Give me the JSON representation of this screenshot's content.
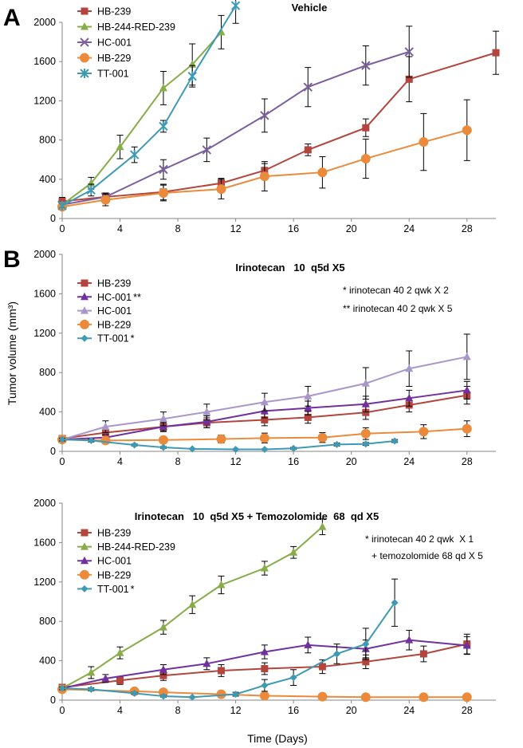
{
  "chart_data": [
    {
      "type": "line",
      "panel_label": "A",
      "title": "Vehicle",
      "xlim": [
        0,
        30
      ],
      "ylim": [
        0,
        2000
      ],
      "xticks": [
        0,
        4,
        8,
        12,
        16,
        20,
        24,
        28
      ],
      "yticks": [
        0,
        400,
        800,
        1200,
        1600,
        2000
      ],
      "legend": "top-left",
      "annotations": [],
      "series": [
        {
          "name": "HB-239",
          "color": "#b3453c",
          "marker": "square",
          "x": [
            0,
            3,
            7,
            11,
            14,
            17,
            21,
            24,
            30
          ],
          "y": [
            175,
            220,
            270,
            360,
            490,
            700,
            925,
            1420,
            1690
          ],
          "err": [
            40,
            40,
            80,
            50,
            70,
            60,
            90,
            230,
            220
          ]
        },
        {
          "name": "HB-244-RED-239",
          "color": "#86ad47",
          "marker": "triangle",
          "x": [
            0,
            2,
            4,
            7,
            9,
            11
          ],
          "y": [
            140,
            360,
            730,
            1330,
            1570,
            1900
          ],
          "err": [
            20,
            60,
            120,
            170,
            210,
            170
          ]
        },
        {
          "name": "HC-001",
          "color": "#7d5fa0",
          "marker": "x",
          "x": [
            0,
            3,
            7,
            10,
            14,
            17,
            21,
            24
          ],
          "y": [
            140,
            220,
            500,
            700,
            1050,
            1340,
            1560,
            1700
          ],
          "err": [
            20,
            30,
            100,
            120,
            170,
            200,
            200,
            260
          ]
        },
        {
          "name": "HB-229",
          "color": "#ea8a3a",
          "marker": "circle",
          "x": [
            0,
            3,
            7,
            11,
            14,
            18,
            21,
            25,
            28
          ],
          "y": [
            120,
            190,
            260,
            300,
            430,
            470,
            610,
            780,
            900
          ],
          "err": [
            20,
            60,
            80,
            100,
            150,
            160,
            200,
            290,
            310
          ]
        },
        {
          "name": "TT-001",
          "color": "#3e9ab4",
          "marker": "star",
          "x": [
            0,
            2,
            5,
            7,
            9,
            12
          ],
          "y": [
            130,
            290,
            650,
            940,
            1450,
            2170
          ],
          "err": [
            20,
            60,
            80,
            60,
            110,
            180
          ]
        }
      ]
    },
    {
      "type": "line",
      "panel_label": "B",
      "title": "Irinotecan   10  q5d X5",
      "ylabel": "Tumor volume (mm³)",
      "xlim": [
        0,
        30
      ],
      "ylim": [
        0,
        2000
      ],
      "xticks": [
        0,
        4,
        8,
        12,
        16,
        20,
        24,
        28
      ],
      "yticks": [
        0,
        400,
        800,
        1200,
        1600,
        2000
      ],
      "legend": "top-left",
      "annotations": [
        "* irinotecan 40 2 qwk X 2",
        "** irinotecan 40 2 qwk X 5"
      ],
      "series": [
        {
          "name": "HB-239",
          "color": "#b3453c",
          "marker": "square",
          "x": [
            0,
            3,
            7,
            10,
            14,
            17,
            21,
            24,
            28
          ],
          "y": [
            130,
            190,
            250,
            290,
            320,
            345,
            395,
            470,
            570
          ],
          "err": [
            20,
            30,
            40,
            50,
            60,
            60,
            70,
            70,
            90
          ]
        },
        {
          "name": "HC-001",
          "suffix": "**",
          "color": "#7030a0",
          "marker": "triangle",
          "x": [
            0,
            3,
            7,
            10,
            14,
            17,
            21,
            24,
            28
          ],
          "y": [
            120,
            140,
            250,
            300,
            410,
            440,
            480,
            540,
            620
          ],
          "err": [
            20,
            30,
            50,
            60,
            70,
            70,
            80,
            80,
            90
          ]
        },
        {
          "name": "HC-001",
          "color": "#a997cc",
          "marker": "triangle",
          "x": [
            0,
            3,
            7,
            10,
            14,
            17,
            21,
            24,
            28
          ],
          "y": [
            120,
            250,
            330,
            400,
            500,
            560,
            690,
            840,
            960
          ],
          "err": [
            20,
            60,
            70,
            80,
            90,
            100,
            160,
            180,
            230
          ]
        },
        {
          "name": "HB-229",
          "color": "#ea8a3a",
          "marker": "circle",
          "x": [
            0,
            3,
            7,
            11,
            14,
            18,
            21,
            25,
            28
          ],
          "y": [
            120,
            110,
            115,
            125,
            135,
            140,
            180,
            200,
            230
          ],
          "err": [
            20,
            20,
            30,
            40,
            50,
            50,
            60,
            70,
            80
          ]
        },
        {
          "name": "TT-001",
          "suffix": "*",
          "color": "#3e9ab4",
          "marker": "diamond",
          "x": [
            0,
            2,
            5,
            7,
            9,
            12,
            14,
            16,
            19,
            21,
            23
          ],
          "y": [
            120,
            110,
            65,
            40,
            25,
            20,
            20,
            30,
            70,
            75,
            105
          ],
          "err": [
            15,
            15,
            10,
            10,
            5,
            5,
            5,
            10,
            15,
            15,
            15
          ]
        }
      ]
    },
    {
      "type": "line",
      "title": "Irinotecan   10  q5d X5 + Temozolomide  68  qd X5",
      "xlabel": "Time (Days)",
      "xlim": [
        0,
        30
      ],
      "ylim": [
        0,
        2000
      ],
      "xticks": [
        0,
        4,
        8,
        12,
        16,
        20,
        24,
        28
      ],
      "yticks": [
        0,
        400,
        800,
        1200,
        1600,
        2000
      ],
      "legend": "top-left",
      "annotations": [
        "* irinotecan 40 2 qwk  X 1",
        "+ temozolomide 68 qd X 5"
      ],
      "series": [
        {
          "name": "HB-239",
          "color": "#b3453c",
          "marker": "square",
          "x": [
            0,
            4,
            7,
            11,
            14,
            18,
            21,
            25,
            28
          ],
          "y": [
            130,
            200,
            250,
            300,
            320,
            340,
            390,
            470,
            570
          ],
          "err": [
            20,
            40,
            50,
            60,
            60,
            70,
            70,
            80,
            100
          ]
        },
        {
          "name": "HB-244-RED-239",
          "color": "#86ad47",
          "marker": "triangle",
          "x": [
            0,
            2,
            4,
            7,
            9,
            11,
            14,
            16,
            18
          ],
          "y": [
            120,
            280,
            480,
            740,
            970,
            1170,
            1340,
            1500,
            1760
          ],
          "err": [
            20,
            60,
            60,
            70,
            90,
            90,
            70,
            60,
            80
          ]
        },
        {
          "name": "HC-001",
          "color": "#7030a0",
          "marker": "triangle",
          "x": [
            0,
            3,
            7,
            10,
            14,
            17,
            21,
            24,
            28
          ],
          "y": [
            120,
            220,
            310,
            370,
            490,
            560,
            520,
            610,
            555
          ],
          "err": [
            20,
            40,
            50,
            60,
            70,
            80,
            90,
            100,
            90
          ]
        },
        {
          "name": "HB-229",
          "color": "#ea8a3a",
          "marker": "circle",
          "x": [
            0,
            5,
            7,
            11,
            14,
            18,
            21,
            25,
            28
          ],
          "y": [
            110,
            90,
            80,
            60,
            45,
            35,
            30,
            30,
            30
          ],
          "err": [
            15,
            15,
            10,
            10,
            10,
            5,
            5,
            5,
            5
          ]
        },
        {
          "name": "TT-001",
          "suffix": "*",
          "color": "#3e9ab4",
          "marker": "diamond",
          "x": [
            0,
            2,
            5,
            7,
            9,
            12,
            14,
            16,
            19,
            21,
            23
          ],
          "y": [
            120,
            110,
            70,
            40,
            30,
            60,
            150,
            230,
            470,
            570,
            990
          ],
          "err": [
            15,
            15,
            10,
            10,
            5,
            20,
            60,
            80,
            100,
            160,
            240
          ]
        }
      ]
    }
  ]
}
